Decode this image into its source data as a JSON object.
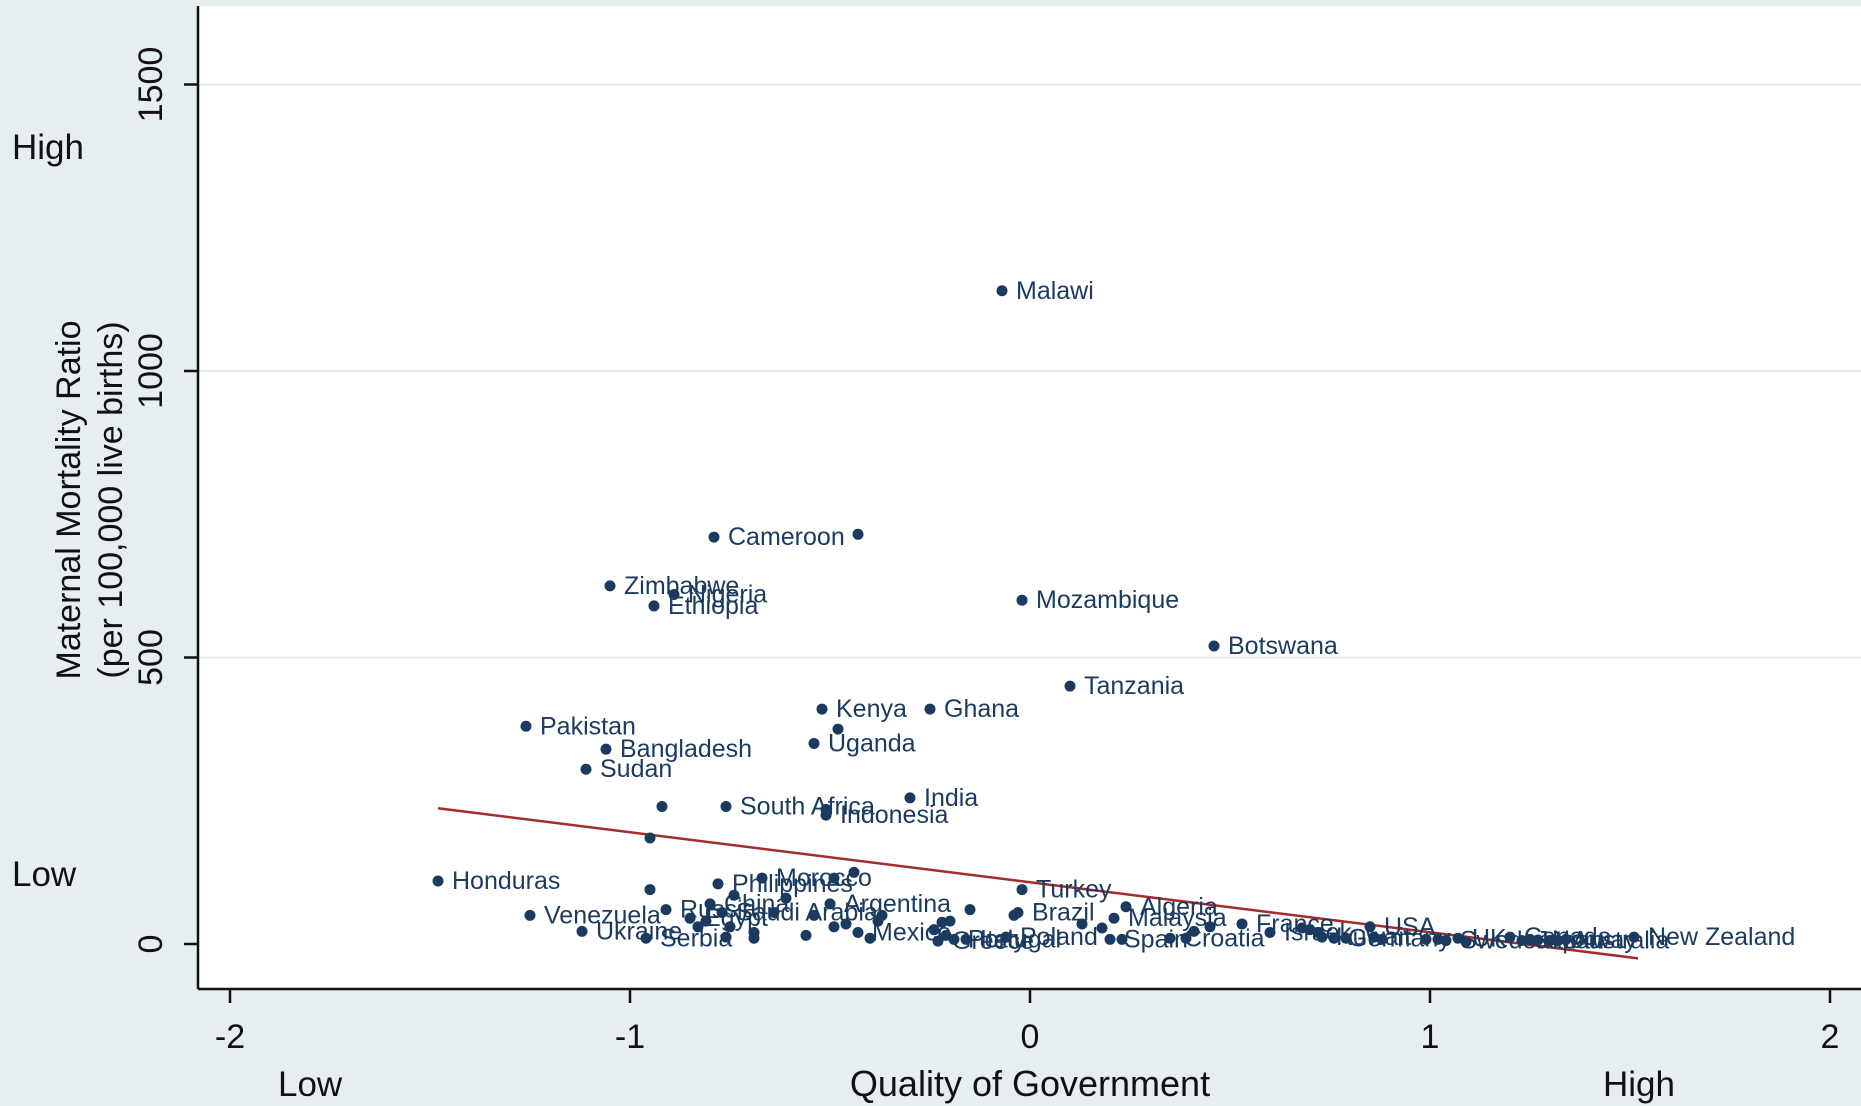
{
  "chart_data": {
    "type": "scatter",
    "title": "",
    "xlabel": "Quality of Government",
    "ylabel": "Maternal Mortality Ratio",
    "ylabel_sub": "(per 100,000 live births)",
    "x_range": [
      -2.05,
      2.05
    ],
    "y_range": [
      -75,
      1600
    ],
    "x_ticks": [
      -2,
      -1,
      0,
      1,
      2
    ],
    "y_ticks": [
      0,
      500,
      1000,
      1500
    ],
    "grid": "horizontal",
    "qualitative_labels": {
      "x_low": "Low",
      "x_high": "High",
      "y_low": "Low",
      "y_high": "High"
    },
    "colors": {
      "point": "#1a3a5f",
      "label": "#1a3a5f",
      "fit_line": "#a52a2a",
      "background": "#e7eef2",
      "plot_bg": "#ffffff",
      "grid": "#e4eaee"
    },
    "fit_line": {
      "x": [
        -1.48,
        1.52
      ],
      "y": [
        237,
        -25
      ]
    },
    "points": [
      {
        "label": "Malawi",
        "x": -0.07,
        "y": 1140
      },
      {
        "label": "Cameroon",
        "x": -0.79,
        "y": 710
      },
      {
        "label": "",
        "x": -0.43,
        "y": 715
      },
      {
        "label": "Zimbabwe",
        "x": -1.05,
        "y": 625
      },
      {
        "label": "Nigeria",
        "x": -0.89,
        "y": 610
      },
      {
        "label": "Ethiopia",
        "x": -0.94,
        "y": 590
      },
      {
        "label": "Mozambique",
        "x": -0.02,
        "y": 600
      },
      {
        "label": "Botswana",
        "x": 0.46,
        "y": 520
      },
      {
        "label": "Tanzania",
        "x": 0.1,
        "y": 450
      },
      {
        "label": "Kenya",
        "x": -0.52,
        "y": 410
      },
      {
        "label": "Ghana",
        "x": -0.25,
        "y": 410
      },
      {
        "label": "",
        "x": -0.48,
        "y": 375
      },
      {
        "label": "Uganda",
        "x": -0.54,
        "y": 350
      },
      {
        "label": "Pakistan",
        "x": -1.26,
        "y": 380
      },
      {
        "label": "Bangladesh",
        "x": -1.06,
        "y": 340
      },
      {
        "label": "Sudan",
        "x": -1.11,
        "y": 305
      },
      {
        "label": "India",
        "x": -0.3,
        "y": 255
      },
      {
        "label": "South Africa",
        "x": -0.76,
        "y": 240
      },
      {
        "label": "",
        "x": -0.92,
        "y": 240
      },
      {
        "label": "",
        "x": -0.51,
        "y": 235
      },
      {
        "label": "Indonesia",
        "x": -0.51,
        "y": 225
      },
      {
        "label": "",
        "x": -0.95,
        "y": 185
      },
      {
        "label": "Morocco",
        "x": -0.67,
        "y": 115
      },
      {
        "label": "",
        "x": -0.49,
        "y": 115
      },
      {
        "label": "",
        "x": -0.44,
        "y": 125
      },
      {
        "label": "Honduras",
        "x": -1.48,
        "y": 110
      },
      {
        "label": "Philippines",
        "x": -0.78,
        "y": 105
      },
      {
        "label": "",
        "x": -0.95,
        "y": 95
      },
      {
        "label": "",
        "x": -0.74,
        "y": 85
      },
      {
        "label": "",
        "x": -0.61,
        "y": 80
      },
      {
        "label": "Argentina",
        "x": -0.5,
        "y": 70
      },
      {
        "label": "China",
        "x": -0.8,
        "y": 70
      },
      {
        "label": "Russia",
        "x": -0.91,
        "y": 60
      },
      {
        "label": "Saudi Arabia",
        "x": -0.77,
        "y": 55
      },
      {
        "label": "",
        "x": -0.64,
        "y": 55
      },
      {
        "label": "",
        "x": -0.54,
        "y": 50
      },
      {
        "label": "",
        "x": -0.37,
        "y": 50
      },
      {
        "label": "Venezuela",
        "x": -1.25,
        "y": 50
      },
      {
        "label": "Egypt",
        "x": -0.85,
        "y": 45
      },
      {
        "label": "",
        "x": -0.81,
        "y": 40
      },
      {
        "label": "",
        "x": -0.75,
        "y": 30
      },
      {
        "label": "",
        "x": -0.49,
        "y": 30
      },
      {
        "label": "",
        "x": -0.46,
        "y": 35
      },
      {
        "label": "",
        "x": -0.38,
        "y": 40
      },
      {
        "label": "Mexico",
        "x": -0.43,
        "y": 20
      },
      {
        "label": "",
        "x": -0.4,
        "y": 10
      },
      {
        "label": "",
        "x": -0.56,
        "y": 15
      },
      {
        "label": "",
        "x": -0.69,
        "y": 20
      },
      {
        "label": "",
        "x": -0.69,
        "y": 10
      },
      {
        "label": "",
        "x": -0.76,
        "y": 12
      },
      {
        "label": "",
        "x": -0.83,
        "y": 30
      },
      {
        "label": "Ukraine",
        "x": -1.12,
        "y": 22
      },
      {
        "label": "Serbia",
        "x": -0.96,
        "y": 10
      },
      {
        "label": "Turkey",
        "x": -0.02,
        "y": 95
      },
      {
        "label": "",
        "x": -0.15,
        "y": 60
      },
      {
        "label": "",
        "x": -0.04,
        "y": 50
      },
      {
        "label": "Brazil",
        "x": -0.03,
        "y": 55
      },
      {
        "label": "",
        "x": -0.2,
        "y": 40
      },
      {
        "label": "",
        "x": -0.22,
        "y": 38
      },
      {
        "label": "",
        "x": -0.24,
        "y": 25
      },
      {
        "label": "",
        "x": -0.21,
        "y": 15
      },
      {
        "label": "Portugal",
        "x": -0.19,
        "y": 8
      },
      {
        "label": "Italy",
        "x": -0.16,
        "y": 8
      },
      {
        "label": "Greece",
        "x": -0.23,
        "y": 5
      },
      {
        "label": "Poland",
        "x": -0.06,
        "y": 12
      },
      {
        "label": "Algeria",
        "x": 0.24,
        "y": 65
      },
      {
        "label": "Malaysia",
        "x": 0.21,
        "y": 45
      },
      {
        "label": "",
        "x": 0.13,
        "y": 35
      },
      {
        "label": "",
        "x": 0.18,
        "y": 28
      },
      {
        "label": "Spain",
        "x": 0.2,
        "y": 8
      },
      {
        "label": "",
        "x": 0.23,
        "y": 8
      },
      {
        "label": "Croatia",
        "x": 0.35,
        "y": 10
      },
      {
        "label": "",
        "x": 0.39,
        "y": 10
      },
      {
        "label": "",
        "x": 0.41,
        "y": 22
      },
      {
        "label": "",
        "x": 0.45,
        "y": 30
      },
      {
        "label": "France",
        "x": 0.53,
        "y": 35
      },
      {
        "label": "Israel",
        "x": 0.6,
        "y": 20
      },
      {
        "label": "",
        "x": 0.68,
        "y": 28
      },
      {
        "label": "",
        "x": 0.7,
        "y": 25
      },
      {
        "label": "",
        "x": 0.72,
        "y": 20
      },
      {
        "label": "Kuwait",
        "x": 0.73,
        "y": 12
      },
      {
        "label": "Germany",
        "x": 0.76,
        "y": 10
      },
      {
        "label": "",
        "x": 0.79,
        "y": 10
      },
      {
        "label": "USA",
        "x": 0.85,
        "y": 30
      },
      {
        "label": "",
        "x": 0.86,
        "y": 12
      },
      {
        "label": "",
        "x": 0.88,
        "y": 8
      },
      {
        "label": "",
        "x": 0.99,
        "y": 8
      },
      {
        "label": "",
        "x": 1.02,
        "y": 8
      },
      {
        "label": "Sweden",
        "x": 1.04,
        "y": 6
      },
      {
        "label": "UK",
        "x": 1.07,
        "y": 10
      },
      {
        "label": "",
        "x": 1.09,
        "y": 4
      },
      {
        "label": "Canada",
        "x": 1.2,
        "y": 12
      },
      {
        "label": "Japan",
        "x": 1.23,
        "y": 6
      },
      {
        "label": "",
        "x": 1.25,
        "y": 8
      },
      {
        "label": "Norway",
        "x": 1.27,
        "y": 7
      },
      {
        "label": "",
        "x": 1.3,
        "y": 6
      },
      {
        "label": "Australia",
        "x": 1.32,
        "y": 6
      },
      {
        "label": "",
        "x": 1.34,
        "y": 8
      },
      {
        "label": "New Zealand",
        "x": 1.51,
        "y": 12
      }
    ]
  }
}
